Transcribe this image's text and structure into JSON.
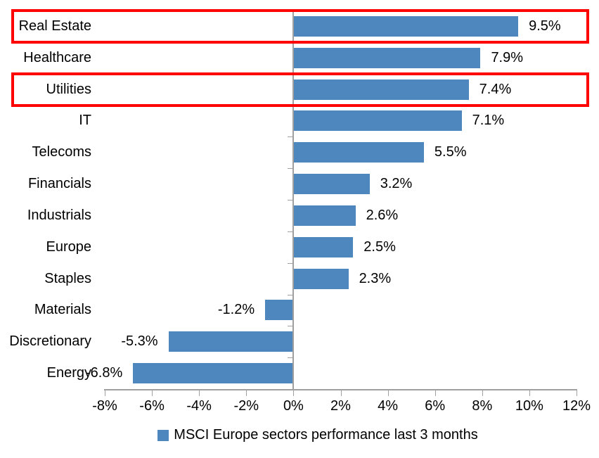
{
  "chart_data": {
    "type": "bar",
    "orientation": "horizontal",
    "title": "",
    "categories": [
      "Real Estate",
      "Healthcare",
      "Utilities",
      "IT",
      "Telecoms",
      "Financials",
      "Industrials",
      "Europe",
      "Staples",
      "Materials",
      "Discretionary",
      "Energy"
    ],
    "values": [
      9.5,
      7.9,
      7.4,
      7.1,
      5.5,
      3.2,
      2.6,
      2.5,
      2.3,
      -1.2,
      -5.3,
      -6.8
    ],
    "data_labels": [
      "9.5%",
      "7.9%",
      "7.4%",
      "7.1%",
      "5.5%",
      "3.2%",
      "2.6%",
      "2.5%",
      "2.3%",
      "-1.2%",
      "-5.3%",
      "-6.8%"
    ],
    "xlim": [
      -8,
      12
    ],
    "x_tick_step": 2,
    "x_tick_labels": [
      "-8%",
      "-6%",
      "-4%",
      "-2%",
      "0%",
      "2%",
      "4%",
      "6%",
      "8%",
      "10%",
      "12%"
    ],
    "grid": false,
    "legend": "MSCI Europe sectors performance last 3 months",
    "legend_position": "bottom",
    "bar_color": "#4E86BE",
    "axis_color": "#A0A0A0",
    "text_color": "#000000",
    "highlighted_categories": [
      "Real Estate",
      "Utilities"
    ],
    "highlight_color": "#FF0000"
  }
}
